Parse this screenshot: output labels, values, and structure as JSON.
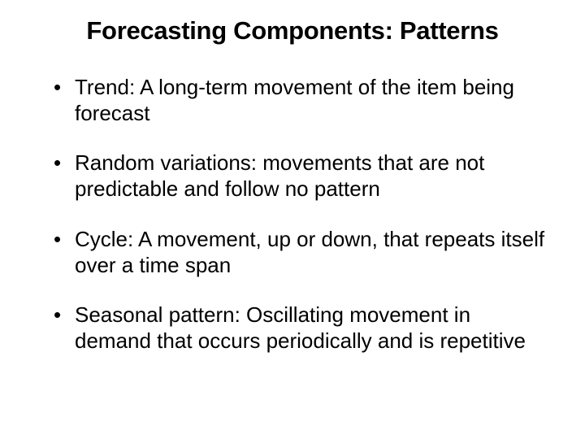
{
  "slide": {
    "title": "Forecasting Components: Patterns",
    "bullets": [
      "Trend: A long-term movement of the item being forecast",
      "Random variations: movements that are not predictable and follow no pattern",
      "Cycle: A movement, up or down, that repeats itself over a time span",
      "Seasonal pattern: Oscillating movement in demand that occurs periodically and is repetitive"
    ]
  },
  "styling": {
    "background_color": "#ffffff",
    "text_color": "#000000",
    "font_family": "Arial",
    "title_fontsize": 31,
    "title_fontweight": "bold",
    "bullet_fontsize": 26,
    "bullet_marker": "•",
    "line_height": 1.22
  }
}
